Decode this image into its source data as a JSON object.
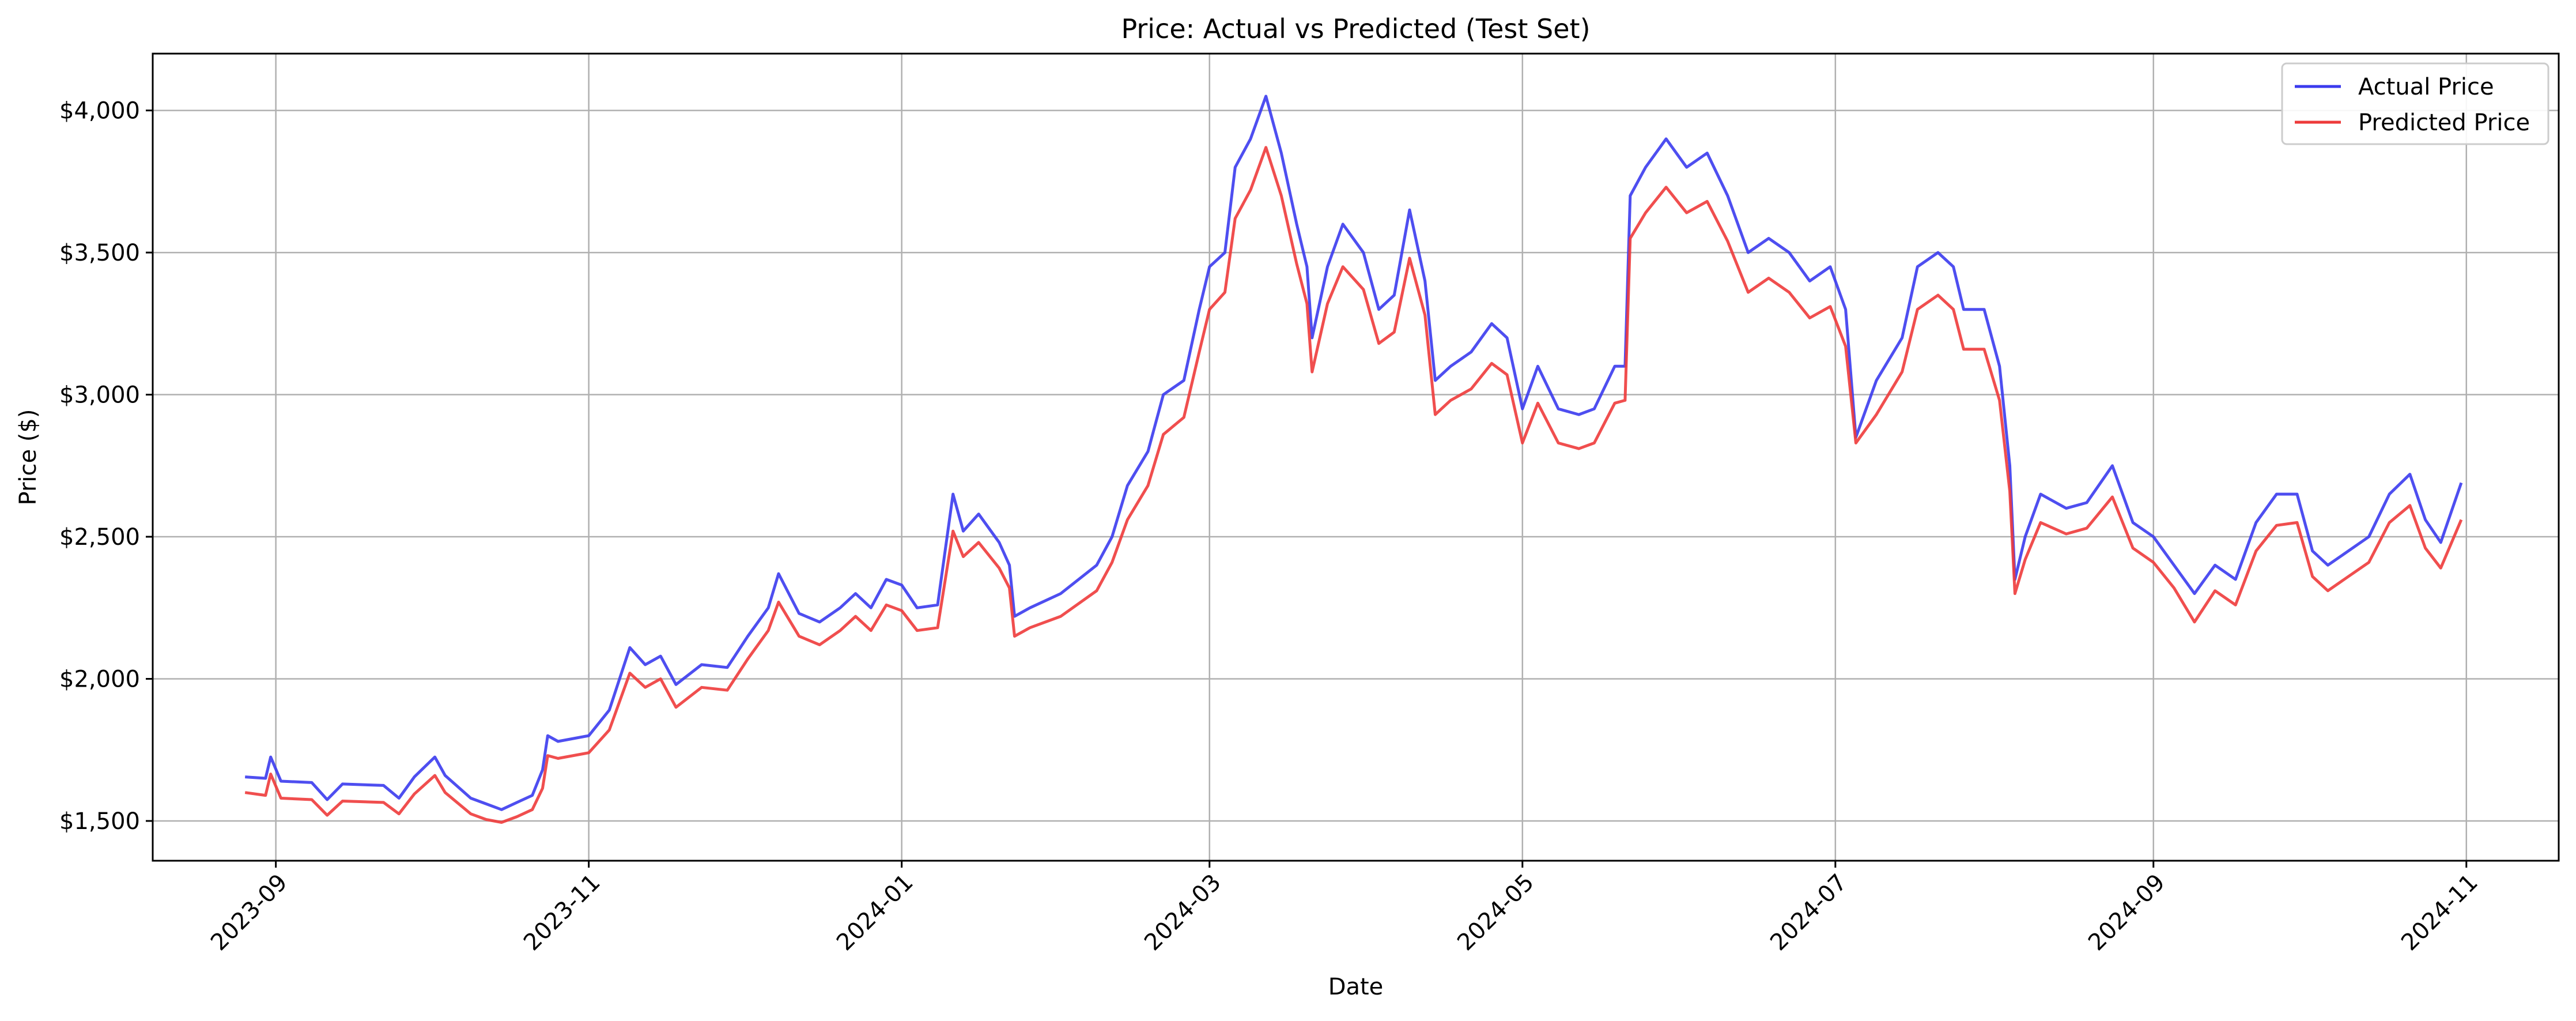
{
  "chart_data": {
    "type": "line",
    "title": "Price: Actual vs Predicted (Test Set)",
    "xlabel": "Date",
    "ylabel": "Price ($)",
    "x_range": [
      "2023-08-08",
      "2024-11-19"
    ],
    "ylim": [
      1360,
      4200
    ],
    "x_ticks": [
      "2023-09",
      "2023-11",
      "2024-01",
      "2024-03",
      "2024-05",
      "2024-07",
      "2024-09",
      "2024-11"
    ],
    "x_tick_dates": [
      "2023-09-01",
      "2023-11-01",
      "2024-01-01",
      "2024-03-01",
      "2024-05-01",
      "2024-07-01",
      "2024-09-01",
      "2024-11-01"
    ],
    "y_ticks": [
      1500,
      2000,
      2500,
      3000,
      3500,
      4000
    ],
    "y_tick_labels": [
      "$1,500",
      "$2,000",
      "$2,500",
      "$3,000",
      "$3,500",
      "$4,000"
    ],
    "grid": true,
    "legend_position": "top-right",
    "series": [
      {
        "name": "Actual Price",
        "color": "#3b3bee",
        "points": [
          [
            "2023-08-26",
            1655
          ],
          [
            "2023-08-30",
            1650
          ],
          [
            "2023-08-31",
            1725
          ],
          [
            "2023-09-02",
            1640
          ],
          [
            "2023-09-08",
            1635
          ],
          [
            "2023-09-11",
            1575
          ],
          [
            "2023-09-14",
            1630
          ],
          [
            "2023-09-22",
            1625
          ],
          [
            "2023-09-25",
            1580
          ],
          [
            "2023-09-28",
            1655
          ],
          [
            "2023-10-02",
            1725
          ],
          [
            "2023-10-04",
            1660
          ],
          [
            "2023-10-09",
            1580
          ],
          [
            "2023-10-12",
            1560
          ],
          [
            "2023-10-15",
            1540
          ],
          [
            "2023-10-18",
            1565
          ],
          [
            "2023-10-21",
            1590
          ],
          [
            "2023-10-23",
            1680
          ],
          [
            "2023-10-24",
            1800
          ],
          [
            "2023-10-26",
            1780
          ],
          [
            "2023-11-01",
            1800
          ],
          [
            "2023-11-05",
            1890
          ],
          [
            "2023-11-09",
            2110
          ],
          [
            "2023-11-12",
            2050
          ],
          [
            "2023-11-15",
            2080
          ],
          [
            "2023-11-18",
            1980
          ],
          [
            "2023-11-23",
            2050
          ],
          [
            "2023-11-28",
            2040
          ],
          [
            "2023-12-02",
            2150
          ],
          [
            "2023-12-06",
            2250
          ],
          [
            "2023-12-08",
            2370
          ],
          [
            "2023-12-12",
            2230
          ],
          [
            "2023-12-16",
            2200
          ],
          [
            "2023-12-20",
            2250
          ],
          [
            "2023-12-23",
            2300
          ],
          [
            "2023-12-26",
            2250
          ],
          [
            "2023-12-29",
            2350
          ],
          [
            "2024-01-01",
            2330
          ],
          [
            "2024-01-04",
            2250
          ],
          [
            "2024-01-08",
            2260
          ],
          [
            "2024-01-11",
            2650
          ],
          [
            "2024-01-13",
            2520
          ],
          [
            "2024-01-16",
            2580
          ],
          [
            "2024-01-20",
            2480
          ],
          [
            "2024-01-22",
            2400
          ],
          [
            "2024-01-23",
            2220
          ],
          [
            "2024-01-26",
            2250
          ],
          [
            "2024-02-01",
            2300
          ],
          [
            "2024-02-08",
            2400
          ],
          [
            "2024-02-11",
            2500
          ],
          [
            "2024-02-14",
            2680
          ],
          [
            "2024-02-18",
            2800
          ],
          [
            "2024-02-21",
            3000
          ],
          [
            "2024-02-25",
            3050
          ],
          [
            "2024-02-28",
            3300
          ],
          [
            "2024-03-01",
            3450
          ],
          [
            "2024-03-04",
            3500
          ],
          [
            "2024-03-06",
            3800
          ],
          [
            "2024-03-09",
            3900
          ],
          [
            "2024-03-12",
            4050
          ],
          [
            "2024-03-15",
            3850
          ],
          [
            "2024-03-18",
            3600
          ],
          [
            "2024-03-20",
            3450
          ],
          [
            "2024-03-21",
            3200
          ],
          [
            "2024-03-24",
            3450
          ],
          [
            "2024-03-27",
            3600
          ],
          [
            "2024-03-31",
            3500
          ],
          [
            "2024-04-03",
            3300
          ],
          [
            "2024-04-06",
            3350
          ],
          [
            "2024-04-09",
            3650
          ],
          [
            "2024-04-12",
            3400
          ],
          [
            "2024-04-14",
            3050
          ],
          [
            "2024-04-17",
            3100
          ],
          [
            "2024-04-21",
            3150
          ],
          [
            "2024-04-25",
            3250
          ],
          [
            "2024-04-28",
            3200
          ],
          [
            "2024-05-01",
            2950
          ],
          [
            "2024-05-04",
            3100
          ],
          [
            "2024-05-08",
            2950
          ],
          [
            "2024-05-12",
            2930
          ],
          [
            "2024-05-15",
            2950
          ],
          [
            "2024-05-19",
            3100
          ],
          [
            "2024-05-21",
            3100
          ],
          [
            "2024-05-22",
            3700
          ],
          [
            "2024-05-25",
            3800
          ],
          [
            "2024-05-29",
            3900
          ],
          [
            "2024-06-02",
            3800
          ],
          [
            "2024-06-06",
            3850
          ],
          [
            "2024-06-10",
            3700
          ],
          [
            "2024-06-14",
            3500
          ],
          [
            "2024-06-18",
            3550
          ],
          [
            "2024-06-22",
            3500
          ],
          [
            "2024-06-26",
            3400
          ],
          [
            "2024-06-30",
            3450
          ],
          [
            "2024-07-03",
            3300
          ],
          [
            "2024-07-05",
            2850
          ],
          [
            "2024-07-09",
            3050
          ],
          [
            "2024-07-14",
            3200
          ],
          [
            "2024-07-17",
            3450
          ],
          [
            "2024-07-21",
            3500
          ],
          [
            "2024-07-24",
            3450
          ],
          [
            "2024-07-26",
            3300
          ],
          [
            "2024-07-30",
            3300
          ],
          [
            "2024-08-02",
            3100
          ],
          [
            "2024-08-04",
            2750
          ],
          [
            "2024-08-05",
            2350
          ],
          [
            "2024-08-07",
            2500
          ],
          [
            "2024-08-10",
            2650
          ],
          [
            "2024-08-15",
            2600
          ],
          [
            "2024-08-19",
            2620
          ],
          [
            "2024-08-24",
            2750
          ],
          [
            "2024-08-28",
            2550
          ],
          [
            "2024-09-01",
            2500
          ],
          [
            "2024-09-05",
            2400
          ],
          [
            "2024-09-09",
            2300
          ],
          [
            "2024-09-13",
            2400
          ],
          [
            "2024-09-17",
            2350
          ],
          [
            "2024-09-21",
            2550
          ],
          [
            "2024-09-25",
            2650
          ],
          [
            "2024-09-29",
            2650
          ],
          [
            "2024-10-02",
            2450
          ],
          [
            "2024-10-05",
            2400
          ],
          [
            "2024-10-09",
            2450
          ],
          [
            "2024-10-13",
            2500
          ],
          [
            "2024-10-17",
            2650
          ],
          [
            "2024-10-21",
            2720
          ],
          [
            "2024-10-24",
            2560
          ],
          [
            "2024-10-27",
            2480
          ],
          [
            "2024-10-31",
            2690
          ]
        ]
      },
      {
        "name": "Predicted Price",
        "color": "#ee3b3b",
        "points": [
          [
            "2023-08-26",
            1600
          ],
          [
            "2023-08-30",
            1590
          ],
          [
            "2023-08-31",
            1665
          ],
          [
            "2023-09-02",
            1580
          ],
          [
            "2023-09-08",
            1575
          ],
          [
            "2023-09-11",
            1520
          ],
          [
            "2023-09-14",
            1570
          ],
          [
            "2023-09-22",
            1565
          ],
          [
            "2023-09-25",
            1525
          ],
          [
            "2023-09-28",
            1595
          ],
          [
            "2023-10-02",
            1660
          ],
          [
            "2023-10-04",
            1600
          ],
          [
            "2023-10-09",
            1525
          ],
          [
            "2023-10-12",
            1505
          ],
          [
            "2023-10-15",
            1495
          ],
          [
            "2023-10-18",
            1515
          ],
          [
            "2023-10-21",
            1540
          ],
          [
            "2023-10-23",
            1615
          ],
          [
            "2023-10-24",
            1730
          ],
          [
            "2023-10-26",
            1720
          ],
          [
            "2023-11-01",
            1740
          ],
          [
            "2023-11-05",
            1820
          ],
          [
            "2023-11-09",
            2020
          ],
          [
            "2023-11-12",
            1970
          ],
          [
            "2023-11-15",
            2000
          ],
          [
            "2023-11-18",
            1900
          ],
          [
            "2023-11-23",
            1970
          ],
          [
            "2023-11-28",
            1960
          ],
          [
            "2023-12-02",
            2070
          ],
          [
            "2023-12-06",
            2170
          ],
          [
            "2023-12-08",
            2270
          ],
          [
            "2023-12-12",
            2150
          ],
          [
            "2023-12-16",
            2120
          ],
          [
            "2023-12-20",
            2170
          ],
          [
            "2023-12-23",
            2220
          ],
          [
            "2023-12-26",
            2170
          ],
          [
            "2023-12-29",
            2260
          ],
          [
            "2024-01-01",
            2240
          ],
          [
            "2024-01-04",
            2170
          ],
          [
            "2024-01-08",
            2180
          ],
          [
            "2024-01-11",
            2520
          ],
          [
            "2024-01-13",
            2430
          ],
          [
            "2024-01-16",
            2480
          ],
          [
            "2024-01-20",
            2390
          ],
          [
            "2024-01-22",
            2320
          ],
          [
            "2024-01-23",
            2150
          ],
          [
            "2024-01-26",
            2180
          ],
          [
            "2024-02-01",
            2220
          ],
          [
            "2024-02-08",
            2310
          ],
          [
            "2024-02-11",
            2410
          ],
          [
            "2024-02-14",
            2560
          ],
          [
            "2024-02-18",
            2680
          ],
          [
            "2024-02-21",
            2860
          ],
          [
            "2024-02-25",
            2920
          ],
          [
            "2024-02-28",
            3150
          ],
          [
            "2024-03-01",
            3300
          ],
          [
            "2024-03-04",
            3360
          ],
          [
            "2024-03-06",
            3620
          ],
          [
            "2024-03-09",
            3720
          ],
          [
            "2024-03-12",
            3870
          ],
          [
            "2024-03-15",
            3700
          ],
          [
            "2024-03-18",
            3460
          ],
          [
            "2024-03-20",
            3320
          ],
          [
            "2024-03-21",
            3080
          ],
          [
            "2024-03-24",
            3320
          ],
          [
            "2024-03-27",
            3450
          ],
          [
            "2024-03-31",
            3370
          ],
          [
            "2024-04-03",
            3180
          ],
          [
            "2024-04-06",
            3220
          ],
          [
            "2024-04-09",
            3480
          ],
          [
            "2024-04-12",
            3280
          ],
          [
            "2024-04-14",
            2930
          ],
          [
            "2024-04-17",
            2980
          ],
          [
            "2024-04-21",
            3020
          ],
          [
            "2024-04-25",
            3110
          ],
          [
            "2024-04-28",
            3070
          ],
          [
            "2024-05-01",
            2830
          ],
          [
            "2024-05-04",
            2970
          ],
          [
            "2024-05-08",
            2830
          ],
          [
            "2024-05-12",
            2810
          ],
          [
            "2024-05-15",
            2830
          ],
          [
            "2024-05-19",
            2970
          ],
          [
            "2024-05-21",
            2980
          ],
          [
            "2024-05-22",
            3550
          ],
          [
            "2024-05-25",
            3640
          ],
          [
            "2024-05-29",
            3730
          ],
          [
            "2024-06-02",
            3640
          ],
          [
            "2024-06-06",
            3680
          ],
          [
            "2024-06-10",
            3540
          ],
          [
            "2024-06-14",
            3360
          ],
          [
            "2024-06-18",
            3410
          ],
          [
            "2024-06-22",
            3360
          ],
          [
            "2024-06-26",
            3270
          ],
          [
            "2024-06-30",
            3310
          ],
          [
            "2024-07-03",
            3170
          ],
          [
            "2024-07-05",
            2830
          ],
          [
            "2024-07-09",
            2930
          ],
          [
            "2024-07-14",
            3080
          ],
          [
            "2024-07-17",
            3300
          ],
          [
            "2024-07-21",
            3350
          ],
          [
            "2024-07-24",
            3300
          ],
          [
            "2024-07-26",
            3160
          ],
          [
            "2024-07-30",
            3160
          ],
          [
            "2024-08-02",
            2980
          ],
          [
            "2024-08-04",
            2660
          ],
          [
            "2024-08-05",
            2300
          ],
          [
            "2024-08-07",
            2420
          ],
          [
            "2024-08-10",
            2550
          ],
          [
            "2024-08-15",
            2510
          ],
          [
            "2024-08-19",
            2530
          ],
          [
            "2024-08-24",
            2640
          ],
          [
            "2024-08-28",
            2460
          ],
          [
            "2024-09-01",
            2410
          ],
          [
            "2024-09-05",
            2320
          ],
          [
            "2024-09-09",
            2200
          ],
          [
            "2024-09-13",
            2310
          ],
          [
            "2024-09-17",
            2260
          ],
          [
            "2024-09-21",
            2450
          ],
          [
            "2024-09-25",
            2540
          ],
          [
            "2024-09-29",
            2550
          ],
          [
            "2024-10-02",
            2360
          ],
          [
            "2024-10-05",
            2310
          ],
          [
            "2024-10-09",
            2360
          ],
          [
            "2024-10-13",
            2410
          ],
          [
            "2024-10-17",
            2550
          ],
          [
            "2024-10-21",
            2610
          ],
          [
            "2024-10-24",
            2460
          ],
          [
            "2024-10-27",
            2390
          ],
          [
            "2024-10-31",
            2560
          ]
        ]
      }
    ]
  }
}
